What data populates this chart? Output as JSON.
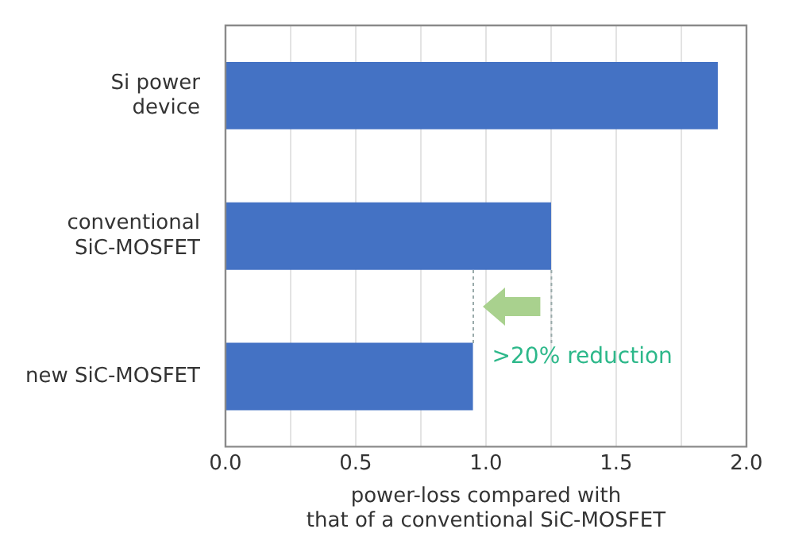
{
  "chart_data": {
    "type": "bar",
    "orientation": "horizontal",
    "categories": [
      "Si power\ndevice",
      "conventional\nSiC-MOSFET",
      "new SiC-MOSFET"
    ],
    "values": [
      1.89,
      1.25,
      0.95
    ],
    "color": "#4472c4",
    "xlabel": "power-loss compared with\nthat of a conventional SiC-MOSFET",
    "xlim": [
      0,
      2
    ],
    "xticks": [
      {
        "value": 0,
        "label": "0.0"
      },
      {
        "value": 0.25,
        "label": null
      },
      0.5,
      {
        "value": 0.75,
        "label": null
      },
      {
        "value": 1,
        "label": "1.0"
      },
      {
        "value": 1.25,
        "label": null
      },
      1.5,
      {
        "value": 1.75,
        "label": null
      },
      {
        "value": 2,
        "label": "2.0"
      }
    ],
    "grid": "x",
    "annotations": [
      {
        "text": ">20% reduction",
        "x": 0.95,
        "y": "new SiC-MOSFET"
      }
    ]
  }
}
